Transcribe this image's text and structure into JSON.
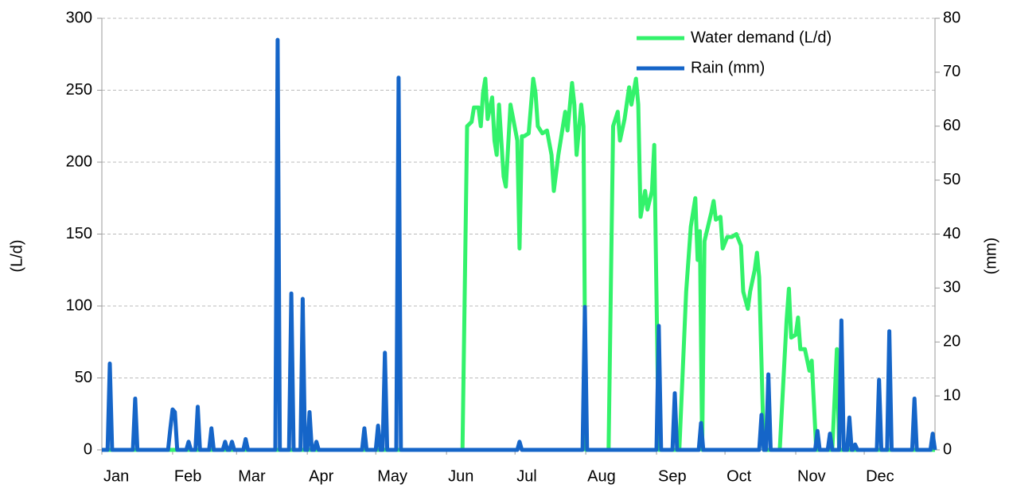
{
  "chart_data": {
    "type": "line",
    "y_label": "(L/d)",
    "y2_label": "(mm)",
    "xlim": [
      0,
      365
    ],
    "xticks": [
      {
        "value": 0,
        "label": "Jan"
      },
      {
        "value": 31,
        "label": "Feb"
      },
      {
        "value": 59,
        "label": "Mar"
      },
      {
        "value": 90,
        "label": "Apr"
      },
      {
        "value": 120,
        "label": "May"
      },
      {
        "value": 151,
        "label": "Jun"
      },
      {
        "value": 181,
        "label": "Jul"
      },
      {
        "value": 212,
        "label": "Aug"
      },
      {
        "value": 243,
        "label": "Sep"
      },
      {
        "value": 273,
        "label": "Oct"
      },
      {
        "value": 304,
        "label": "Nov"
      },
      {
        "value": 334,
        "label": "Dec"
      }
    ],
    "ylim": [
      0,
      300
    ],
    "yticks": [
      0,
      50,
      100,
      150,
      200,
      250,
      300
    ],
    "y2lim": [
      0,
      80
    ],
    "y2ticks": [
      0,
      10,
      20,
      30,
      40,
      50,
      60,
      70,
      80
    ],
    "grid": true,
    "legend": "top-right",
    "series": [
      {
        "name": "Water demand (L/d)",
        "color": "#33f26b",
        "axis": "y",
        "x": [
          0,
          158,
          160,
          162,
          163,
          165,
          166,
          167,
          168,
          169,
          171,
          172,
          173,
          174,
          176,
          177,
          179,
          180,
          182,
          183,
          184,
          185,
          187,
          189,
          190,
          191,
          193,
          195,
          197,
          198,
          200,
          202,
          203,
          204,
          206,
          207,
          208,
          210,
          211,
          212,
          222,
          224,
          226,
          227,
          229,
          231,
          232,
          234,
          235,
          236,
          238,
          239,
          241,
          242,
          244,
          253,
          256,
          258,
          260,
          261,
          262,
          263,
          264,
          267,
          268,
          269,
          271,
          272,
          274,
          276,
          278,
          280,
          281,
          283,
          284,
          286,
          287,
          288,
          290,
          297,
          300,
          301,
          302,
          304,
          305,
          306,
          308,
          310,
          311,
          313,
          320,
          322,
          323,
          365
        ],
        "values": [
          0,
          0,
          225,
          228,
          238,
          238,
          225,
          248,
          258,
          230,
          245,
          215,
          205,
          240,
          190,
          183,
          240,
          232,
          215,
          140,
          218,
          218,
          220,
          258,
          248,
          225,
          220,
          222,
          205,
          180,
          205,
          225,
          235,
          222,
          255,
          240,
          205,
          240,
          225,
          0,
          0,
          225,
          235,
          215,
          230,
          252,
          240,
          258,
          240,
          162,
          180,
          167,
          180,
          212,
          0,
          0,
          110,
          155,
          175,
          132,
          152,
          0,
          145,
          165,
          173,
          160,
          162,
          140,
          148,
          148,
          150,
          142,
          110,
          98,
          110,
          125,
          137,
          120,
          0,
          0,
          90,
          112,
          78,
          80,
          92,
          70,
          70,
          55,
          62,
          0,
          0,
          70,
          0,
          0
        ]
      },
      {
        "name": "Rain (mm)",
        "color": "#1565c8",
        "axis": "y2",
        "x": [
          0,
          2.5,
          3.5,
          4.5,
          13.6,
          14.6,
          15.6,
          29,
          30,
          31,
          32,
          33,
          37,
          38,
          39,
          41,
          42,
          43,
          47,
          48,
          49,
          53,
          54,
          55,
          56,
          57,
          58,
          62,
          63,
          64,
          76,
          77,
          78,
          82,
          83,
          84,
          87,
          88,
          89,
          90,
          91,
          92,
          93,
          94,
          95,
          114,
          115,
          116,
          120,
          121,
          122,
          123,
          124,
          125,
          129,
          130,
          131,
          182,
          183,
          184,
          210.6,
          211.6,
          212.6,
          243,
          244,
          245,
          250,
          251,
          252,
          261.5,
          262.5,
          263.5,
          288,
          289,
          290,
          291,
          292,
          293,
          312.5,
          313.5,
          314.5,
          318,
          319,
          320,
          323,
          324,
          325,
          326.5,
          327.5,
          328.5,
          329,
          330,
          331,
          339.5,
          340.5,
          341.5,
          344,
          345,
          346,
          355,
          356,
          357,
          363,
          364,
          365
        ],
        "values": [
          0,
          0,
          16,
          0,
          0,
          9.5,
          0,
          0,
          4,
          7.5,
          7,
          0,
          0,
          1.5,
          0,
          0,
          8,
          0,
          0,
          4,
          0,
          0,
          1.5,
          0,
          0,
          1.5,
          0,
          0,
          2,
          0,
          0,
          76,
          0,
          0,
          29,
          0,
          0,
          28,
          0,
          0,
          7,
          0,
          0,
          1.5,
          0,
          0,
          4,
          0,
          0,
          4.5,
          0,
          0,
          18,
          0,
          0,
          69,
          0,
          0,
          1.5,
          0,
          0,
          26.5,
          0,
          0,
          23,
          0,
          0,
          10.5,
          0,
          0,
          5,
          0,
          0,
          6.5,
          0,
          0,
          14,
          0,
          0,
          3.5,
          0,
          0,
          3,
          0,
          0,
          24,
          0,
          0,
          6,
          0,
          0,
          1,
          0,
          0,
          13,
          0,
          0,
          22,
          0,
          0,
          9.5,
          0,
          0,
          3,
          0
        ]
      }
    ]
  }
}
